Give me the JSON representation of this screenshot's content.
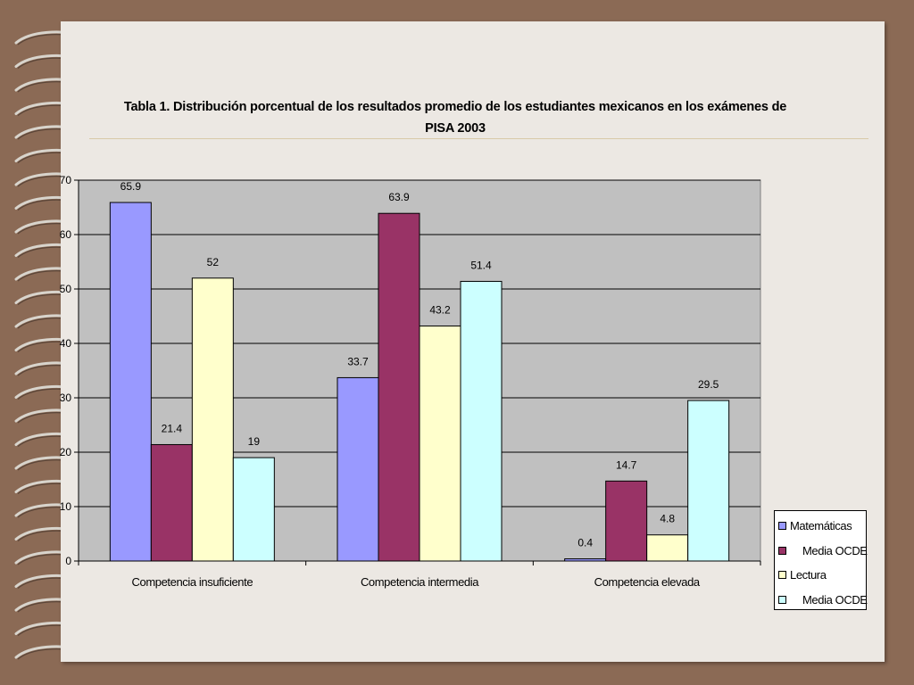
{
  "chart_data": {
    "type": "bar",
    "title": "Tabla 1. Distribución porcentual de los resultados promedio de los estudiantes mexicanos en los exámenes de PISA 2003",
    "title_lines": [
      "Tabla 1. Distribución porcentual de los resultados promedio de los estudiantes mexicanos en los exámenes de",
      "PISA 2003"
    ],
    "categories": [
      "Competencia insuficiente",
      "Competencia intermedia",
      "Competencia elevada"
    ],
    "series": [
      {
        "name": "Matemáticas",
        "values": [
          65.9,
          33.7,
          0.4
        ],
        "color": "#9999ff"
      },
      {
        "name": "Media OCDE",
        "values": [
          21.4,
          63.9,
          14.7
        ],
        "color": "#993366"
      },
      {
        "name": "Lectura",
        "values": [
          52,
          43.2,
          4.8
        ],
        "color": "#ffffcc"
      },
      {
        "name": "Media OCDE",
        "values": [
          19,
          51.4,
          29.5
        ],
        "color": "#ccffff"
      }
    ],
    "data_labels": [
      [
        "65.9",
        "33.7",
        "0.4"
      ],
      [
        "21.4",
        "63.9",
        "14.7"
      ],
      [
        "52",
        "43.2",
        "4.8"
      ],
      [
        "19",
        "51.4",
        "29.5"
      ]
    ],
    "y_ticks": [
      0,
      10,
      20,
      30,
      40,
      50,
      60,
      70
    ],
    "ylim": [
      0,
      70
    ],
    "xlabel": "",
    "ylabel": "",
    "grid": true,
    "plot_background": "#c0c0c0",
    "legend": {
      "position": "right-bottom"
    }
  }
}
